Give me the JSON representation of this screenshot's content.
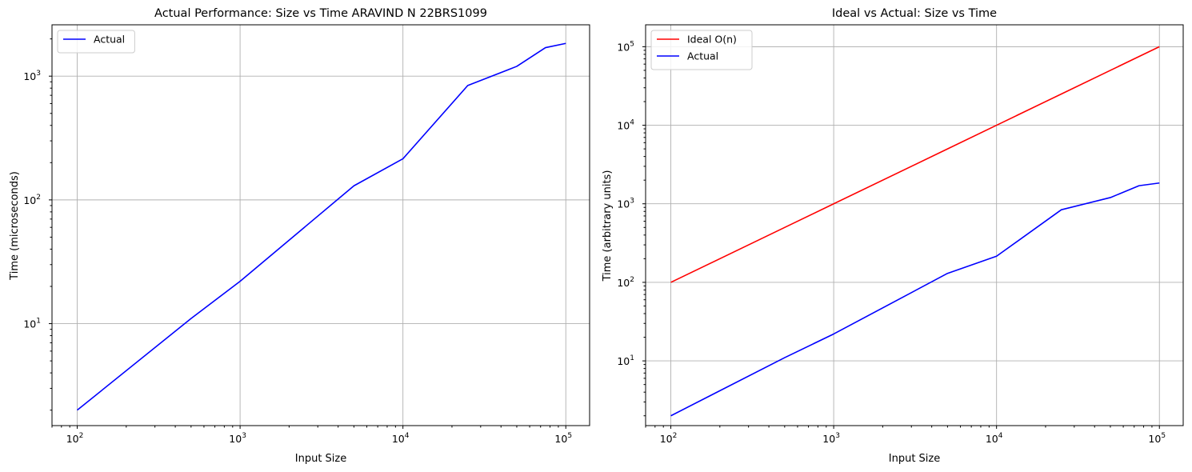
{
  "colors": {
    "actual": "#0000ff",
    "ideal": "#ff0000",
    "grid": "#b0b0b0"
  },
  "chart_data": [
    {
      "type": "line",
      "title": "Actual Performance: Size vs Time ARAVIND N 22BRS1099",
      "xlabel": "Input Size",
      "ylabel": "Time (microseconds)",
      "xscale": "log",
      "yscale": "log",
      "xlim": [
        70,
        140000
      ],
      "ylim": [
        1.5,
        2600
      ],
      "grid": true,
      "legend_position": "upper left",
      "x": [
        100,
        500,
        1000,
        5000,
        10000,
        25000,
        50000,
        75000,
        100000
      ],
      "series": [
        {
          "name": "Actual",
          "color": "#0000ff",
          "values": [
            2,
            11,
            22,
            130,
            215,
            840,
            1200,
            1700,
            1840
          ]
        }
      ]
    },
    {
      "type": "line",
      "title": "Ideal vs Actual: Size vs Time",
      "xlabel": "Input Size",
      "ylabel": "Time (arbitrary units)",
      "xscale": "log",
      "yscale": "log",
      "xlim": [
        70,
        140000
      ],
      "ylim": [
        1.5,
        190000
      ],
      "grid": true,
      "legend_position": "upper left",
      "x": [
        100,
        500,
        1000,
        5000,
        10000,
        25000,
        50000,
        75000,
        100000
      ],
      "series": [
        {
          "name": "Ideal O(n)",
          "color": "#ff0000",
          "values": [
            100,
            500,
            1000,
            5000,
            10000,
            25000,
            50000,
            75000,
            100000
          ]
        },
        {
          "name": "Actual",
          "color": "#0000ff",
          "values": [
            2,
            11,
            22,
            130,
            215,
            840,
            1200,
            1700,
            1840
          ]
        }
      ]
    }
  ]
}
